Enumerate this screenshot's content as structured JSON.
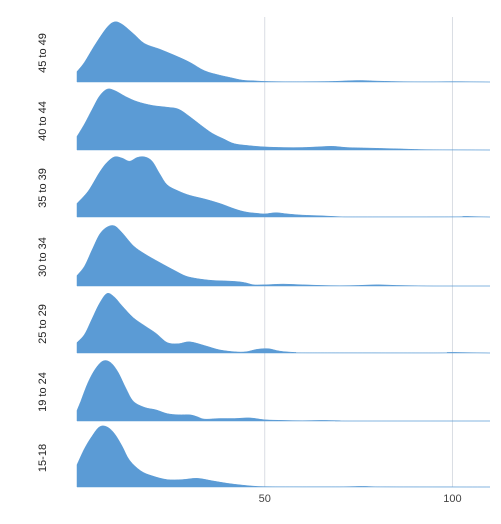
{
  "chart_data": {
    "type": "area",
    "subtype": "ridgeline",
    "title": "",
    "xlabel": "",
    "ylabel": "",
    "xlim": [
      0,
      110
    ],
    "x_ticks": [
      50,
      100
    ],
    "x_tick_labels": [
      "50",
      "100"
    ],
    "grid": "vertical",
    "fill_color": "#5b9bd5",
    "series": [
      {
        "name": "45 to 49",
        "points": [
          [
            0,
            0.17
          ],
          [
            2,
            0.32
          ],
          [
            5,
            0.62
          ],
          [
            8,
            0.88
          ],
          [
            10,
            0.97
          ],
          [
            12,
            0.93
          ],
          [
            15,
            0.78
          ],
          [
            18,
            0.62
          ],
          [
            22,
            0.53
          ],
          [
            26,
            0.43
          ],
          [
            30,
            0.32
          ],
          [
            34,
            0.18
          ],
          [
            38,
            0.11
          ],
          [
            41,
            0.07
          ],
          [
            44,
            0.03
          ],
          [
            47,
            0.02
          ],
          [
            50,
            0.01
          ],
          [
            55,
            0.005
          ],
          [
            60,
            0.005
          ],
          [
            68,
            0.01
          ],
          [
            75,
            0.025
          ],
          [
            80,
            0.015
          ],
          [
            88,
            0.005
          ],
          [
            95,
            0.004
          ],
          [
            100,
            0.006
          ],
          [
            104,
            0.005
          ],
          [
            110,
            0.0
          ]
        ]
      },
      {
        "name": "40 to 44",
        "points": [
          [
            0,
            0.22
          ],
          [
            2,
            0.42
          ],
          [
            4,
            0.65
          ],
          [
            6,
            0.87
          ],
          [
            8,
            0.98
          ],
          [
            10,
            0.96
          ],
          [
            13,
            0.86
          ],
          [
            16,
            0.78
          ],
          [
            20,
            0.72
          ],
          [
            24,
            0.69
          ],
          [
            27,
            0.66
          ],
          [
            30,
            0.54
          ],
          [
            33,
            0.4
          ],
          [
            36,
            0.27
          ],
          [
            39,
            0.18
          ],
          [
            42,
            0.1
          ],
          [
            46,
            0.07
          ],
          [
            50,
            0.05
          ],
          [
            55,
            0.04
          ],
          [
            60,
            0.04
          ],
          [
            64,
            0.05
          ],
          [
            68,
            0.06
          ],
          [
            72,
            0.04
          ],
          [
            78,
            0.03
          ],
          [
            85,
            0.02
          ],
          [
            90,
            0.01
          ],
          [
            95,
            0.005
          ],
          [
            110,
            0.0
          ]
        ]
      },
      {
        "name": "35 to 39",
        "points": [
          [
            0,
            0.22
          ],
          [
            3,
            0.42
          ],
          [
            6,
            0.72
          ],
          [
            8,
            0.88
          ],
          [
            10,
            0.97
          ],
          [
            12,
            0.95
          ],
          [
            14,
            0.9
          ],
          [
            16,
            0.96
          ],
          [
            18,
            0.97
          ],
          [
            20,
            0.9
          ],
          [
            22,
            0.7
          ],
          [
            24,
            0.52
          ],
          [
            27,
            0.42
          ],
          [
            30,
            0.35
          ],
          [
            34,
            0.29
          ],
          [
            38,
            0.22
          ],
          [
            42,
            0.13
          ],
          [
            45,
            0.08
          ],
          [
            48,
            0.06
          ],
          [
            50,
            0.05
          ],
          [
            53,
            0.07
          ],
          [
            56,
            0.05
          ],
          [
            60,
            0.03
          ],
          [
            65,
            0.02
          ],
          [
            70,
            0.005
          ],
          [
            75,
            0.002
          ],
          [
            100,
            0.003
          ],
          [
            103,
            0.01
          ],
          [
            106,
            0.006
          ],
          [
            110,
            0.0
          ]
        ]
      },
      {
        "name": "30 to 34",
        "points": [
          [
            0,
            0.17
          ],
          [
            2,
            0.32
          ],
          [
            4,
            0.58
          ],
          [
            6,
            0.83
          ],
          [
            8,
            0.95
          ],
          [
            10,
            0.97
          ],
          [
            12,
            0.86
          ],
          [
            15,
            0.65
          ],
          [
            18,
            0.52
          ],
          [
            22,
            0.38
          ],
          [
            26,
            0.25
          ],
          [
            29,
            0.16
          ],
          [
            32,
            0.12
          ],
          [
            36,
            0.09
          ],
          [
            40,
            0.08
          ],
          [
            43,
            0.07
          ],
          [
            45,
            0.05
          ],
          [
            47,
            0.02
          ],
          [
            50,
            0.02
          ],
          [
            55,
            0.03
          ],
          [
            60,
            0.02
          ],
          [
            65,
            0.01
          ],
          [
            70,
            0.005
          ],
          [
            75,
            0.01
          ],
          [
            80,
            0.02
          ],
          [
            85,
            0.01
          ],
          [
            90,
            0.005
          ],
          [
            95,
            0.0
          ],
          [
            110,
            0.0
          ]
        ]
      },
      {
        "name": "25 to 29",
        "points": [
          [
            0,
            0.17
          ],
          [
            2,
            0.3
          ],
          [
            4,
            0.55
          ],
          [
            6,
            0.8
          ],
          [
            8,
            0.96
          ],
          [
            10,
            0.9
          ],
          [
            12,
            0.76
          ],
          [
            15,
            0.57
          ],
          [
            18,
            0.44
          ],
          [
            21,
            0.32
          ],
          [
            24,
            0.17
          ],
          [
            27,
            0.15
          ],
          [
            30,
            0.18
          ],
          [
            34,
            0.12
          ],
          [
            38,
            0.05
          ],
          [
            42,
            0.02
          ],
          [
            45,
            0.02
          ],
          [
            48,
            0.06
          ],
          [
            51,
            0.07
          ],
          [
            54,
            0.03
          ],
          [
            58,
            0.01
          ],
          [
            62,
            0.004
          ],
          [
            95,
            0.002
          ],
          [
            99,
            0.01
          ],
          [
            104,
            0.006
          ],
          [
            110,
            0.0
          ]
        ]
      },
      {
        "name": "19 to 24",
        "points": [
          [
            0,
            0.17
          ],
          [
            1,
            0.32
          ],
          [
            3,
            0.63
          ],
          [
            5,
            0.85
          ],
          [
            7,
            0.97
          ],
          [
            9,
            0.94
          ],
          [
            11,
            0.78
          ],
          [
            13,
            0.53
          ],
          [
            15,
            0.32
          ],
          [
            18,
            0.22
          ],
          [
            21,
            0.18
          ],
          [
            24,
            0.12
          ],
          [
            27,
            0.1
          ],
          [
            30,
            0.1
          ],
          [
            32,
            0.07
          ],
          [
            34,
            0.03
          ],
          [
            38,
            0.04
          ],
          [
            42,
            0.04
          ],
          [
            46,
            0.05
          ],
          [
            50,
            0.02
          ],
          [
            55,
            0.01
          ],
          [
            60,
            0.005
          ],
          [
            65,
            0.01
          ],
          [
            70,
            0.005
          ],
          [
            72,
            0.0
          ],
          [
            110,
            0.0
          ]
        ]
      },
      {
        "name": "15-18",
        "points": [
          [
            0,
            0.36
          ],
          [
            2,
            0.62
          ],
          [
            4,
            0.82
          ],
          [
            6,
            0.97
          ],
          [
            8,
            0.97
          ],
          [
            10,
            0.86
          ],
          [
            12,
            0.66
          ],
          [
            14,
            0.43
          ],
          [
            17,
            0.26
          ],
          [
            20,
            0.18
          ],
          [
            24,
            0.12
          ],
          [
            28,
            0.12
          ],
          [
            32,
            0.14
          ],
          [
            36,
            0.1
          ],
          [
            40,
            0.06
          ],
          [
            44,
            0.03
          ],
          [
            48,
            0.01
          ],
          [
            52,
            0.005
          ],
          [
            60,
            0.004
          ],
          [
            70,
            0.004
          ],
          [
            76,
            0.01
          ],
          [
            80,
            0.004
          ],
          [
            86,
            0.002
          ],
          [
            110,
            0.0
          ]
        ]
      }
    ]
  }
}
